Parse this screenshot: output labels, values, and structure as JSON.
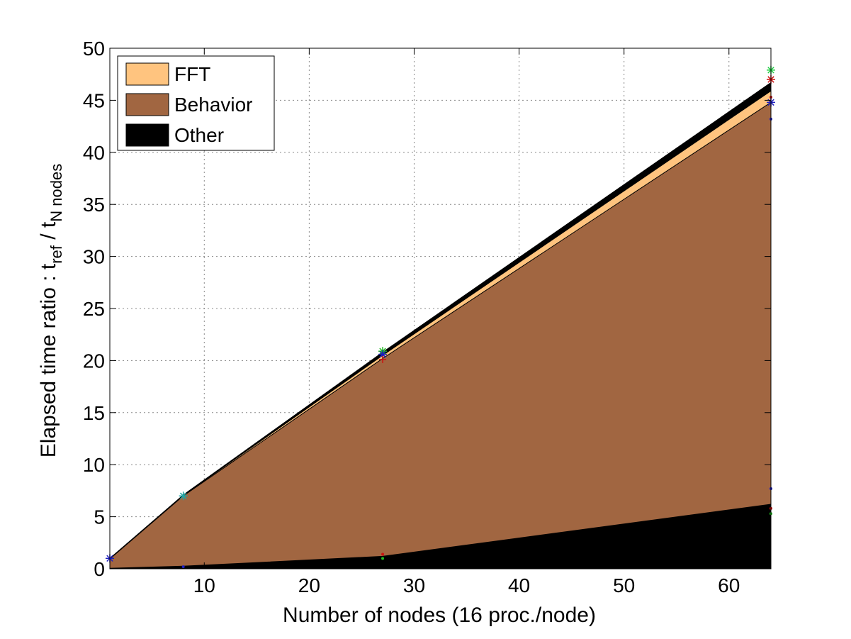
{
  "chart_data": {
    "type": "area",
    "xlabel": "Number of nodes (16 proc./node)",
    "ylabel": {
      "prefix": "Elapsed time ratio : t",
      "sub1": "ref",
      "mid": " / t",
      "sub2": "N nodes"
    },
    "xlim": [
      1,
      64
    ],
    "ylim": [
      0,
      50
    ],
    "xticks": [
      10,
      20,
      30,
      40,
      50,
      60
    ],
    "yticks": [
      0,
      5,
      10,
      15,
      20,
      25,
      30,
      35,
      40,
      45,
      50
    ],
    "grid": true,
    "legend_position": "top-left",
    "stack_order": [
      "Other",
      "Behavior",
      "FFT"
    ],
    "x": [
      1,
      8,
      27,
      64
    ],
    "layer_tops": {
      "Other": [
        0.05,
        0.25,
        1.2,
        6.2
      ],
      "Behavior": [
        0.95,
        7.0,
        20.2,
        44.8
      ],
      "FFT": [
        0.97,
        7.05,
        20.5,
        45.9
      ],
      "Total": [
        1.0,
        7.1,
        20.8,
        46.7
      ]
    },
    "series": [
      {
        "name": "Other",
        "color": "#000000"
      },
      {
        "name": "Behavior",
        "color": "#a16641"
      },
      {
        "name": "FFT",
        "color": "#ffc47f"
      }
    ],
    "markers": [
      {
        "x": 1,
        "y": 1.0,
        "color": "#1f1fbf",
        "symbol": "*"
      },
      {
        "x": 8,
        "y": 7.0,
        "color": "#1fa5a5",
        "symbol": "*"
      },
      {
        "x": 8,
        "y": 0.2,
        "color": "#1f1fbf",
        "symbol": "."
      },
      {
        "x": 27,
        "y": 20.9,
        "color": "#22bb22",
        "symbol": "*"
      },
      {
        "x": 27,
        "y": 20.6,
        "color": "#1f1fbf",
        "symbol": "*"
      },
      {
        "x": 27,
        "y": 20.1,
        "color": "#cc1111",
        "symbol": "+"
      },
      {
        "x": 27,
        "y": 1.4,
        "color": "#cc1111",
        "symbol": "."
      },
      {
        "x": 27,
        "y": 1.0,
        "color": "#22bb22",
        "symbol": "."
      },
      {
        "x": 64,
        "y": 47.9,
        "color": "#22cc44",
        "symbol": "*"
      },
      {
        "x": 64,
        "y": 47.0,
        "color": "#cc1111",
        "symbol": "*"
      },
      {
        "x": 64,
        "y": 45.3,
        "color": "#cc1111",
        "symbol": "."
      },
      {
        "x": 64,
        "y": 44.8,
        "color": "#1f1fbf",
        "symbol": "*"
      },
      {
        "x": 64,
        "y": 43.2,
        "color": "#1f1fbf",
        "symbol": "."
      },
      {
        "x": 64,
        "y": 7.7,
        "color": "#1f1fbf",
        "symbol": "."
      },
      {
        "x": 64,
        "y": 5.8,
        "color": "#cc1111",
        "symbol": "."
      },
      {
        "x": 64,
        "y": 5.3,
        "color": "#22bb22",
        "symbol": "."
      }
    ]
  }
}
